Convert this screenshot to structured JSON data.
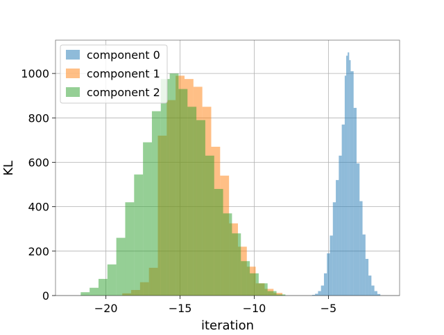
{
  "chart_data": {
    "type": "histogram",
    "xlabel": "iteration",
    "ylabel": "KL",
    "xlim": [
      -23.4,
      -0.2
    ],
    "ylim": [
      0,
      1150
    ],
    "x_ticks": [
      -20,
      -15,
      -10,
      -5
    ],
    "x_tick_labels": [
      "−20",
      "−15",
      "−10",
      "−5"
    ],
    "y_ticks": [
      0,
      200,
      400,
      600,
      800,
      1000
    ],
    "y_tick_labels": [
      "0",
      "200",
      "400",
      "600",
      "800",
      "1000"
    ],
    "grid": true,
    "legend_position": "top-left",
    "alpha": 0.5,
    "series": [
      {
        "name": "component 0",
        "color": "#1f77b4",
        "bins": [
          [
            -6.1,
            -5.9,
            3
          ],
          [
            -5.9,
            -5.7,
            8
          ],
          [
            -5.7,
            -5.5,
            20
          ],
          [
            -5.5,
            -5.3,
            45
          ],
          [
            -5.3,
            -5.1,
            100
          ],
          [
            -5.1,
            -4.9,
            190
          ],
          [
            -4.9,
            -4.7,
            270
          ],
          [
            -4.7,
            -4.5,
            420
          ],
          [
            -4.5,
            -4.3,
            520
          ],
          [
            -4.3,
            -4.1,
            630
          ],
          [
            -4.1,
            -3.9,
            770
          ],
          [
            -3.9,
            -3.8,
            990
          ],
          [
            -3.8,
            -3.7,
            1080
          ],
          [
            -3.7,
            -3.6,
            1095
          ],
          [
            -3.6,
            -3.5,
            1060
          ],
          [
            -3.5,
            -3.3,
            1010
          ],
          [
            -3.3,
            -3.1,
            845
          ],
          [
            -3.1,
            -2.9,
            595
          ],
          [
            -2.9,
            -2.7,
            425
          ],
          [
            -2.7,
            -2.5,
            275
          ],
          [
            -2.5,
            -2.3,
            165
          ],
          [
            -2.3,
            -2.1,
            90
          ],
          [
            -2.1,
            -1.9,
            45
          ],
          [
            -1.9,
            -1.7,
            20
          ],
          [
            -1.7,
            -1.5,
            7
          ]
        ]
      },
      {
        "name": "component 1",
        "color": "#ff7f0e",
        "bins": [
          [
            -18.9,
            -18.3,
            10
          ],
          [
            -18.3,
            -17.7,
            25
          ],
          [
            -17.7,
            -17.1,
            60
          ],
          [
            -17.1,
            -16.5,
            125
          ],
          [
            -16.5,
            -15.9,
            720
          ],
          [
            -15.9,
            -15.3,
            880
          ],
          [
            -15.3,
            -14.7,
            990
          ],
          [
            -14.7,
            -14.1,
            975
          ],
          [
            -14.1,
            -13.5,
            940
          ],
          [
            -13.5,
            -12.9,
            850
          ],
          [
            -12.9,
            -12.3,
            670
          ],
          [
            -12.3,
            -11.7,
            540
          ],
          [
            -11.7,
            -11.1,
            325
          ],
          [
            -11.1,
            -10.5,
            220
          ],
          [
            -10.5,
            -9.9,
            130
          ],
          [
            -9.9,
            -9.3,
            55
          ],
          [
            -9.3,
            -8.7,
            30
          ],
          [
            -8.7,
            -8.1,
            12
          ]
        ]
      },
      {
        "name": "component 2",
        "color": "#2ca02c",
        "bins": [
          [
            -21.7,
            -21.1,
            15
          ],
          [
            -21.1,
            -20.5,
            35
          ],
          [
            -20.5,
            -19.9,
            75
          ],
          [
            -19.9,
            -19.3,
            140
          ],
          [
            -19.3,
            -18.7,
            260
          ],
          [
            -18.7,
            -18.1,
            420
          ],
          [
            -18.1,
            -17.5,
            545
          ],
          [
            -17.5,
            -16.9,
            690
          ],
          [
            -16.9,
            -16.3,
            830
          ],
          [
            -16.3,
            -15.7,
            975
          ],
          [
            -15.7,
            -15.1,
            1000
          ],
          [
            -15.1,
            -14.5,
            930
          ],
          [
            -14.5,
            -13.9,
            850
          ],
          [
            -13.9,
            -13.3,
            790
          ],
          [
            -13.3,
            -12.7,
            630
          ],
          [
            -12.7,
            -12.1,
            480
          ],
          [
            -12.1,
            -11.5,
            370
          ],
          [
            -11.5,
            -10.9,
            280
          ],
          [
            -10.9,
            -10.3,
            155
          ],
          [
            -10.3,
            -9.7,
            100
          ],
          [
            -9.7,
            -9.1,
            55
          ],
          [
            -9.1,
            -8.5,
            20
          ],
          [
            -8.5,
            -7.9,
            5
          ]
        ]
      }
    ]
  }
}
